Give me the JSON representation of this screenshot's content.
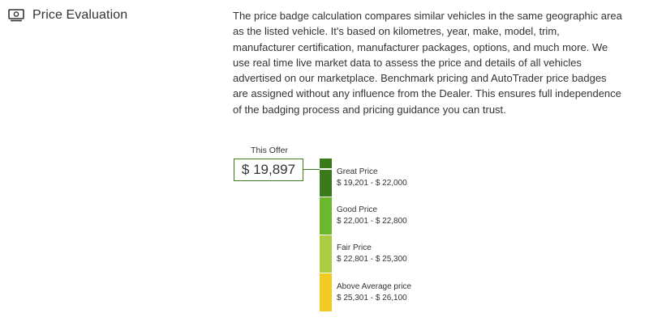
{
  "section": {
    "title": "Price Evaluation",
    "icon": "money-icon"
  },
  "description": "The price badge calculation compares similar vehicles in the same geographic area as the listed vehicle. It's based on kilometres, year, make, model, trim, manufacturer certification, manufacturer packages, options, and much more. We use real time live market data to assess the price and details of all vehicles advertised on our marketplace. Benchmark pricing and AutoTrader price badges are assigned without any influence from the Dealer. This ensures full independence of the badging process and pricing guidance you can trust.",
  "offer": {
    "label": "This Offer",
    "price": "$ 19,897"
  },
  "bands": [
    {
      "name": "Great Price",
      "range": "$ 19,201 - $ 22,000",
      "color": "#3b7a1b"
    },
    {
      "name": "Good Price",
      "range": "$ 22,001 - $ 22,800",
      "color": "#6cb82c"
    },
    {
      "name": "Fair Price",
      "range": "$ 22,801 - $ 25,300",
      "color": "#a9cc42"
    },
    {
      "name": "Above Average price",
      "range": "$ 25,301 - $ 26,100",
      "color": "#f2cb22"
    }
  ]
}
